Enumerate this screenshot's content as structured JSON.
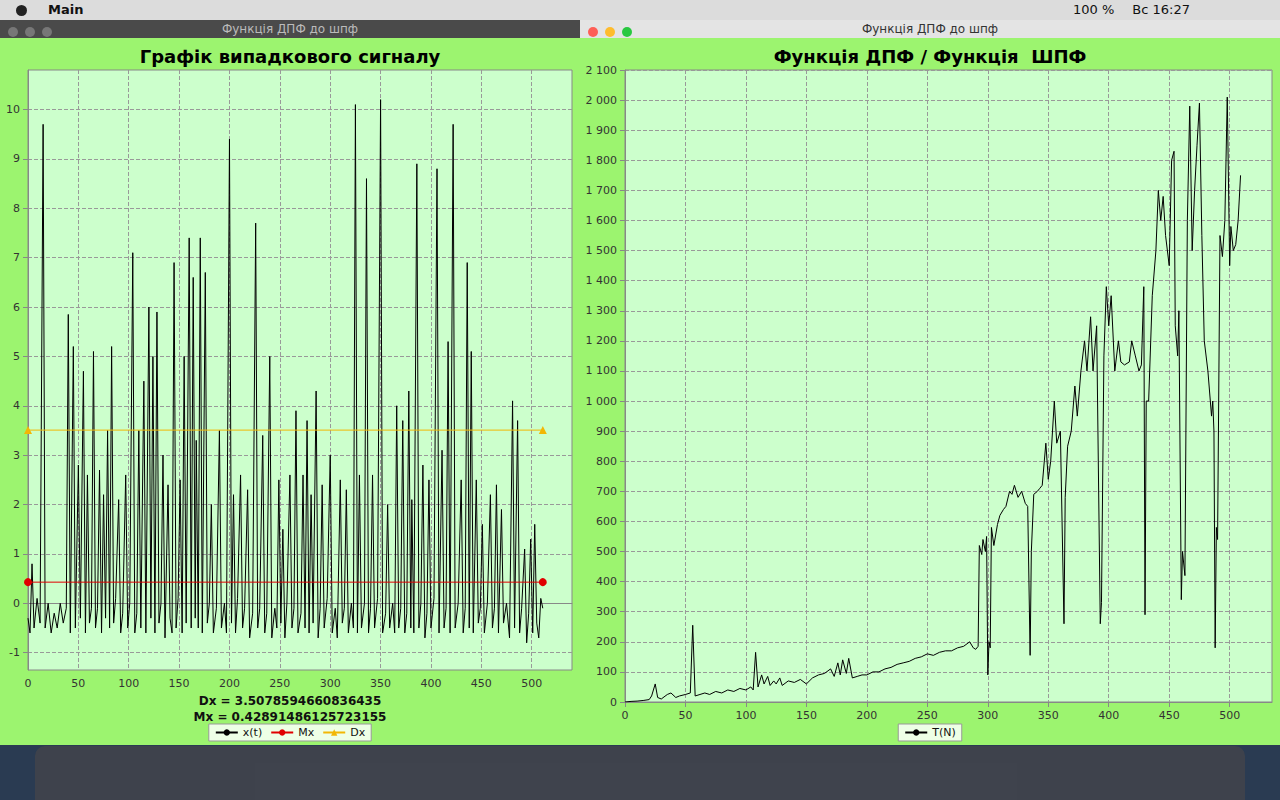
{
  "menu_bar": {
    "app": "Main",
    "battery": "100 %",
    "clock": "Вс 16:27"
  },
  "window_titles": [
    "Функція ДПФ до шпф",
    "Функція ДПФ до шпф"
  ],
  "chart_data": [
    {
      "type": "line",
      "title": "Графік випадкового сигналу",
      "annotations": [
        "Dx = 3.5078594660836435",
        "Mx = 0.42891486125723155"
      ],
      "xlim": [
        0,
        540
      ],
      "xticks": [
        0,
        50,
        100,
        150,
        200,
        250,
        300,
        350,
        400,
        450,
        500
      ],
      "ylim": [
        -1.35,
        10.8
      ],
      "yticks": [
        -1,
        0,
        1,
        2,
        3,
        4,
        5,
        6,
        7,
        8,
        9,
        10
      ],
      "grid": true,
      "legend": "bottom",
      "series": [
        {
          "name": "x(t)",
          "color": "#000000",
          "marker": "none",
          "line_style": "solid",
          "x": [
            0,
            2,
            4,
            6,
            9,
            12,
            15,
            17,
            20,
            23,
            26,
            29,
            32,
            35,
            38,
            40,
            42,
            45,
            47,
            50,
            52,
            55,
            57,
            59,
            61,
            63,
            65,
            67,
            69,
            71,
            73,
            75,
            77,
            79,
            81,
            83,
            85,
            87,
            90,
            92,
            94,
            97,
            99,
            101,
            104,
            106,
            108,
            110,
            112,
            115,
            117,
            120,
            122,
            124,
            126,
            128,
            130,
            132,
            134,
            136,
            139,
            141,
            143,
            145,
            147,
            149,
            151,
            153,
            155,
            157,
            160,
            162,
            164,
            166,
            167,
            169,
            171,
            173,
            176,
            178,
            180,
            182,
            184,
            187,
            190,
            192,
            195,
            197,
            200,
            202,
            204,
            206,
            208,
            211,
            213,
            215,
            218,
            220,
            223,
            226,
            228,
            230,
            233,
            235,
            237,
            240,
            242,
            245,
            247,
            249,
            251,
            253,
            255,
            257,
            260,
            262,
            264,
            266,
            268,
            271,
            273,
            275,
            277,
            279,
            281,
            283,
            286,
            288,
            290,
            292,
            294,
            297,
            300,
            302,
            305,
            307,
            310,
            312,
            314,
            316,
            318,
            321,
            323,
            325,
            327,
            329,
            331,
            334,
            336,
            338,
            340,
            342,
            344,
            347,
            350,
            352,
            355,
            357,
            359,
            362,
            364,
            366,
            368,
            370,
            372,
            374,
            376,
            378,
            380,
            381,
            383,
            386,
            388,
            390,
            392,
            394,
            396,
            398,
            400,
            403,
            406,
            408,
            411,
            413,
            415,
            417,
            419,
            422,
            424,
            427,
            430,
            432,
            434,
            436,
            438,
            440,
            442,
            445,
            447,
            449,
            451,
            453,
            456,
            459,
            461,
            463,
            465,
            467,
            470,
            472,
            475,
            478,
            481,
            483,
            486,
            488,
            490,
            493,
            495,
            497,
            499,
            501,
            503,
            505,
            507,
            509,
            511
          ],
          "values": [
            -0.3,
            -0.6,
            0.8,
            -0.5,
            0.1,
            -0.4,
            9.7,
            -0.5,
            0,
            -0.6,
            -0.2,
            -0.5,
            0,
            -0.4,
            -0.1,
            5.85,
            -0.6,
            5.2,
            -0.5,
            2.8,
            -0.3,
            4.7,
            -0.6,
            2.6,
            -0.4,
            -0.1,
            5.1,
            -0.5,
            -0.1,
            2.7,
            -0.6,
            2.2,
            -0.3,
            3.5,
            -0.5,
            5.2,
            -0.4,
            0.1,
            2.1,
            -0.6,
            -0.2,
            2.6,
            -0.5,
            0,
            7.1,
            -0.6,
            -0.2,
            3.5,
            -0.5,
            4.5,
            -0.6,
            6.0,
            -0.3,
            5.0,
            -0.6,
            5.9,
            -0.4,
            0,
            3.0,
            -0.7,
            2.4,
            -0.3,
            -0.6,
            6.9,
            -0.5,
            0.1,
            2.5,
            -0.6,
            5.0,
            -0.4,
            7.4,
            -0.5,
            6.6,
            -0.3,
            3.3,
            -0.5,
            7.4,
            -0.6,
            6.7,
            -0.4,
            0,
            2.0,
            -0.6,
            -0.1,
            3.5,
            -0.5,
            0,
            -0.6,
            9.4,
            -0.4,
            2.2,
            -0.6,
            0.1,
            2.6,
            -0.5,
            -0.1,
            2.3,
            -0.7,
            -0.2,
            7.7,
            -0.5,
            -0.1,
            3.4,
            -0.6,
            -0.2,
            5.0,
            -0.7,
            -0.1,
            -0.5,
            2.5,
            -0.4,
            1.5,
            -0.7,
            0,
            2.6,
            -0.5,
            -0.1,
            3.9,
            -0.6,
            -0.2,
            2.6,
            -0.5,
            3.7,
            -0.6,
            2.2,
            -0.4,
            4.3,
            -0.7,
            -0.1,
            2.4,
            -0.5,
            0.1,
            3.0,
            -0.6,
            -0.1,
            -0.7,
            2.5,
            -0.4,
            -0.1,
            2.3,
            -0.6,
            0,
            -0.5,
            10.1,
            -0.6,
            2.6,
            -0.5,
            0,
            8.6,
            -0.6,
            -0.1,
            2.6,
            -0.5,
            0.1,
            10.2,
            -0.6,
            -0.2,
            2.0,
            -0.5,
            0,
            -0.6,
            4.0,
            -0.5,
            -0.1,
            3.7,
            -0.6,
            -0.2,
            4.3,
            -0.5,
            2.1,
            -0.6,
            8.9,
            -0.5,
            0,
            2.8,
            -0.7,
            -0.2,
            2.5,
            -0.5,
            0.1,
            8.8,
            -0.6,
            3.1,
            -0.5,
            -0.1,
            5.3,
            -0.6,
            9.7,
            -0.5,
            0,
            2.5,
            -0.6,
            -0.1,
            6.9,
            -0.5,
            5.1,
            -0.6,
            2.5,
            -0.4,
            -0.1,
            1.6,
            -0.6,
            0,
            2.2,
            -0.5,
            -0.1,
            2.4,
            -0.6,
            1.9,
            -0.4,
            0,
            -0.7,
            4.1,
            -0.5,
            3.7,
            -0.6,
            -0.1,
            1.1,
            -0.8,
            -0.2,
            1.3,
            -0.6,
            1.6,
            -0.4,
            -0.7,
            0.1,
            -0.1
          ]
        },
        {
          "name": "Mx",
          "color": "#e00000",
          "marker": "circle",
          "line_style": "solid",
          "x": [
            0,
            511
          ],
          "values": [
            0.42891486125723155,
            0.42891486125723155
          ]
        },
        {
          "name": "Dx",
          "color": "#f2b705",
          "marker": "triangle",
          "line_style": "solid",
          "x": [
            0,
            511
          ],
          "values": [
            3.5078594660836435,
            3.5078594660836435
          ]
        }
      ]
    },
    {
      "type": "line",
      "title": "Функція ДПФ / Функція  ШПФ",
      "xlim": [
        0,
        535
      ],
      "xticks": [
        0,
        50,
        100,
        150,
        200,
        250,
        300,
        350,
        400,
        450,
        500
      ],
      "ylim": [
        0,
        2100
      ],
      "yticks": [
        0,
        100,
        200,
        300,
        400,
        500,
        600,
        700,
        800,
        900,
        {
          "value": 1000,
          "label": "1 000"
        },
        {
          "value": 1100,
          "label": "1 100"
        },
        {
          "value": 1200,
          "label": "1 200"
        },
        {
          "value": 1300,
          "label": "1 300"
        },
        {
          "value": 1400,
          "label": "1 400"
        },
        {
          "value": 1500,
          "label": "1 500"
        },
        {
          "value": 1600,
          "label": "1 600"
        },
        {
          "value": 1700,
          "label": "1 700"
        },
        {
          "value": 1800,
          "label": "1 800"
        },
        {
          "value": 1900,
          "label": "1 900"
        },
        {
          "value": 2000,
          "label": "2 000"
        },
        {
          "value": 2100,
          "label": "2 100"
        }
      ],
      "grid": true,
      "legend": "bottom",
      "series": [
        {
          "name": "T(N)",
          "color": "#000000",
          "marker": "none",
          "line_style": "solid",
          "x": [
            0,
            5,
            10,
            15,
            20,
            22,
            25,
            27,
            30,
            35,
            38,
            42,
            45,
            50,
            54,
            56,
            58,
            62,
            66,
            70,
            75,
            80,
            85,
            90,
            95,
            100,
            104,
            106,
            108,
            110,
            113,
            115,
            118,
            120,
            123,
            125,
            128,
            130,
            135,
            140,
            145,
            150,
            155,
            160,
            165,
            170,
            173,
            176,
            178,
            180,
            183,
            185,
            188,
            192,
            196,
            200,
            205,
            210,
            215,
            220,
            225,
            230,
            235,
            240,
            245,
            250,
            255,
            260,
            265,
            270,
            275,
            280,
            285,
            288,
            290,
            292,
            293,
            295,
            296,
            298,
            299,
            300,
            301,
            302,
            303,
            305,
            308,
            310,
            313,
            315,
            318,
            320,
            322,
            325,
            328,
            331,
            333,
            335,
            336,
            338,
            341,
            343,
            345,
            348,
            350,
            352,
            355,
            357,
            360,
            363,
            364,
            366,
            369,
            372,
            374,
            377,
            380,
            382,
            385,
            387,
            390,
            393,
            394,
            396,
            398,
            400,
            402,
            405,
            408,
            410,
            413,
            417,
            419,
            422,
            425,
            427,
            429,
            430,
            431,
            433,
            436,
            439,
            441,
            443,
            445,
            447,
            450,
            452,
            454,
            455,
            457,
            458,
            460,
            461,
            463,
            465,
            467,
            469,
            471,
            473,
            475,
            477,
            479,
            482,
            485,
            486,
            487,
            488,
            489,
            490,
            492,
            494,
            496,
            498,
            500,
            501,
            503,
            505,
            507,
            509
          ],
          "values": [
            0,
            2,
            3,
            5,
            8,
            20,
            60,
            15,
            10,
            25,
            30,
            15,
            20,
            25,
            30,
            255,
            20,
            25,
            30,
            25,
            35,
            30,
            40,
            35,
            45,
            40,
            50,
            40,
            165,
            50,
            90,
            60,
            85,
            55,
            70,
            60,
            80,
            55,
            70,
            65,
            75,
            60,
            80,
            90,
            95,
            110,
            85,
            130,
            90,
            140,
            95,
            145,
            80,
            85,
            90,
            90,
            100,
            100,
            110,
            115,
            125,
            130,
            135,
            145,
            150,
            160,
            155,
            165,
            170,
            170,
            180,
            185,
            200,
            180,
            175,
            185,
            520,
            490,
            540,
            500,
            550,
            90,
            200,
            180,
            580,
            520,
            590,
            620,
            640,
            650,
            700,
            690,
            720,
            680,
            700,
            660,
            650,
            155,
            500,
            690,
            700,
            710,
            720,
            860,
            740,
            800,
            1000,
            860,
            900,
            260,
            680,
            850,
            900,
            1050,
            950,
            1100,
            1200,
            1100,
            1280,
            1100,
            1250,
            260,
            330,
            1150,
            1380,
            1250,
            1350,
            1100,
            1200,
            1130,
            1120,
            1130,
            1200,
            1150,
            1100,
            1120,
            1380,
            290,
            1000,
            1000,
            1350,
            1500,
            1700,
            1600,
            1680,
            1550,
            1450,
            1800,
            1830,
            1250,
            1150,
            1300,
            340,
            500,
            420,
            1600,
            1980,
            1500,
            1700,
            1850,
            1990,
            1550,
            1200,
            1100,
            950,
            1000,
            900,
            180,
            580,
            540,
            1550,
            1480,
            1600,
            2010,
            1450,
            1580,
            1500,
            1520,
            1600,
            1750
          ]
        }
      ]
    }
  ]
}
